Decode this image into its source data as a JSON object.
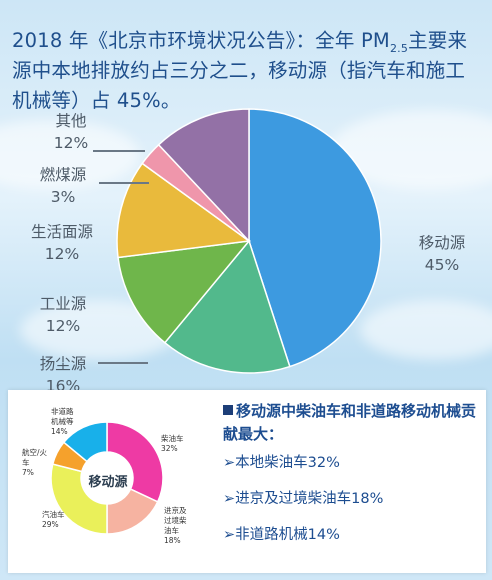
{
  "headline": {
    "part1": "2018 年《北京市环境状况公告》：全年 PM",
    "subscript": "2.5",
    "part2": "主要来源中本地排放约占三分之二，移动源（指汽车和施工机械等）占 45%。"
  },
  "chart_data": [
    {
      "type": "pie",
      "slices": [
        {
          "name": "移动源",
          "value": 45,
          "value_label": "45%",
          "color": "#3d9ae0"
        },
        {
          "name": "扬尘源",
          "value": 16,
          "value_label": "16%",
          "color": "#52b98c"
        },
        {
          "name": "工业源",
          "value": 12,
          "value_label": "12%",
          "color": "#6fb64b"
        },
        {
          "name": "生活面源",
          "value": 12,
          "value_label": "12%",
          "color": "#e9ba3c"
        },
        {
          "name": "燃煤源",
          "value": 3,
          "value_label": "3%",
          "color": "#ef96ab"
        },
        {
          "name": "其他",
          "value": 12,
          "value_label": "12%",
          "color": "#9371a6"
        }
      ]
    },
    {
      "type": "pie",
      "center_label": "移动源",
      "slices": [
        {
          "name": "柴油车",
          "value": 32,
          "value_label": "32%",
          "color": "#ee3aa4"
        },
        {
          "name": "进京及过境柴油车",
          "label_lines": [
            "进京及",
            "过境柴",
            "油车"
          ],
          "value": 18,
          "value_label": "18%",
          "color": "#f6b3a1"
        },
        {
          "name": "汽油车",
          "value": 29,
          "value_label": "29%",
          "color": "#eaf05a"
        },
        {
          "name": "航空/火车",
          "label_lines": [
            "航空/火",
            "车"
          ],
          "value": 7,
          "value_label": "7%",
          "color": "#f5a12c"
        },
        {
          "name": "非道路机械等",
          "label_lines": [
            "非道路",
            "机械等"
          ],
          "value": 14,
          "value_label": "14%",
          "color": "#18b0ea"
        }
      ]
    }
  ],
  "notes": {
    "title": "移动源中柴油车和非道路移动机械贡献最大：",
    "items": [
      "➢本地柴油车32%",
      "➢进京及过境柴油车18%",
      "➢非道路机械14%"
    ]
  }
}
